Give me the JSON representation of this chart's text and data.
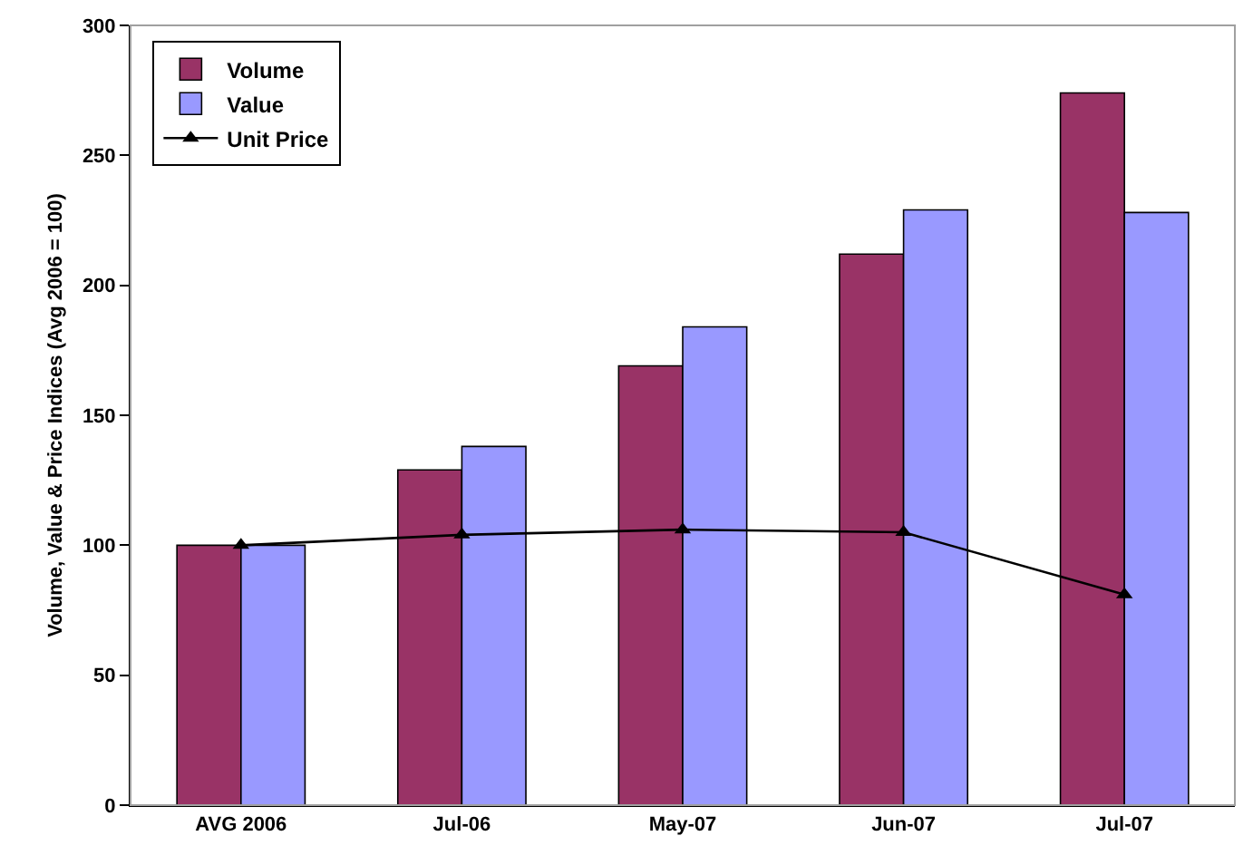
{
  "chart_data": {
    "type": "bar",
    "ylabel": "Volume, Value & Price Indices (Avg 2006 = 100)",
    "categories": [
      "AVG 2006",
      "Jul-06",
      "May-07",
      "Jun-07",
      "Jul-07"
    ],
    "series": [
      {
        "name": "Volume",
        "color": "#993366",
        "values": [
          100,
          129,
          169,
          212,
          274
        ]
      },
      {
        "name": "Value",
        "color": "#9999ff",
        "values": [
          100,
          138,
          184,
          229,
          228
        ]
      },
      {
        "name": "Unit Price",
        "type": "line",
        "color": "#000000",
        "marker": "triangle",
        "values": [
          100,
          104,
          106,
          105,
          81
        ]
      }
    ],
    "ylim": [
      0,
      300
    ],
    "yticks": [
      0,
      50,
      100,
      150,
      200,
      250,
      300
    ],
    "grid": false,
    "legend": "top left"
  }
}
